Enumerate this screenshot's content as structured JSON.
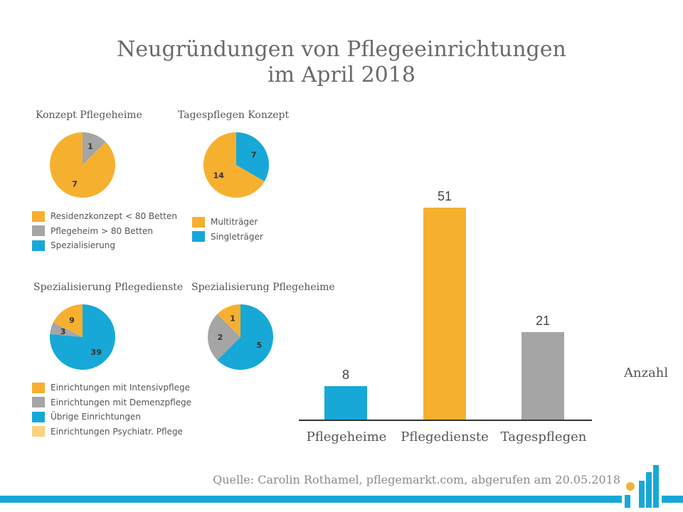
{
  "title_line1": "Neugründungen von Pflegeeinrichtungen",
  "title_line2": "im April 2018",
  "colors": {
    "orange": "#f6b030",
    "gray": "#a5a5a5",
    "blue": "#17a8d8",
    "lightorange": "#fbd27e"
  },
  "chart_data": [
    {
      "type": "pie",
      "title": "Konzept Pflegeheime",
      "slices": [
        {
          "label": "Residenzkonzept < 80 Betten",
          "value": 7,
          "color": "#f6b030"
        },
        {
          "label": "Pflegeheim > 80 Betten",
          "value": 1,
          "color": "#a5a5a5"
        },
        {
          "label": "Spezialisierung",
          "value": 0,
          "color": "#17a8d8"
        }
      ]
    },
    {
      "type": "pie",
      "title": "Tagespflegen Konzept",
      "slices": [
        {
          "label": "Multiträger",
          "value": 14,
          "color": "#f6b030"
        },
        {
          "label": "Singleträger",
          "value": 7,
          "color": "#17a8d8"
        }
      ]
    },
    {
      "type": "pie",
      "title": "Spezialisierung Pflegedienste",
      "slices": [
        {
          "label": "Einrichtungen mit Intensivpflege",
          "value": 9,
          "color": "#f6b030"
        },
        {
          "label": "Einrichtungen mit Demenzpflege",
          "value": 3,
          "color": "#a5a5a5"
        },
        {
          "label": "Übrige Einrichtungen",
          "value": 39,
          "color": "#17a8d8"
        },
        {
          "label": "Einrichtungen Psychiatr. Pflege",
          "value": 0,
          "color": "#fbd27e"
        }
      ]
    },
    {
      "type": "pie",
      "title": "Spezialisierung Pflegeheime",
      "slices": [
        {
          "label": "",
          "value": 1,
          "color": "#f6b030"
        },
        {
          "label": "",
          "value": 2,
          "color": "#a5a5a5"
        },
        {
          "label": "",
          "value": 5,
          "color": "#17a8d8"
        }
      ]
    },
    {
      "type": "bar",
      "categories": [
        "Pflegeheime",
        "Pflegedienste",
        "Tagespflegen"
      ],
      "values": [
        8,
        51,
        21
      ],
      "colors": [
        "#17a8d8",
        "#f6b030",
        "#a5a5a5"
      ],
      "ylabel": "Anzahl",
      "ylim": [
        0,
        60
      ]
    }
  ],
  "legend1": [
    "Residenzkonzept < 80 Betten",
    "Pflegeheim > 80 Betten",
    "Spezialisierung"
  ],
  "legend2": [
    "Multiträger",
    "Singleträger"
  ],
  "legend3": [
    "Einrichtungen mit Intensivpflege",
    "Einrichtungen mit Demenzpflege",
    "Übrige Einrichtungen",
    "Einrichtungen Psychiatr. Pflege"
  ],
  "source": "Quelle: Carolin Rothamel, pflegemarkt.com, abgerufen am 20.05.2018"
}
